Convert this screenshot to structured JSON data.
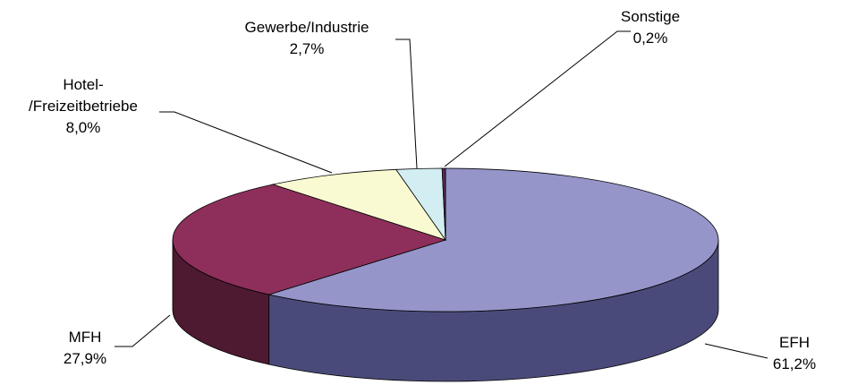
{
  "chart_data": {
    "type": "pie",
    "variant": "3d",
    "title": "",
    "slices": [
      {
        "label": "EFH",
        "value": 61.2,
        "value_text": "61,2%",
        "color": "#9595c9",
        "side_color": "#4a4a7a"
      },
      {
        "label": "MFH",
        "value": 27.9,
        "value_text": "27,9%",
        "color": "#8e2f5b",
        "side_color": "#4e1a31"
      },
      {
        "label": "Hotel-\n/Freizeitbetriebe",
        "value": 8.0,
        "value_text": "8,0%",
        "color": "#fafad2",
        "side_color": "#9a9a78"
      },
      {
        "label": "Gewerbe/Industrie",
        "value": 2.7,
        "value_text": "2,7%",
        "color": "#d3eef2",
        "side_color": "#7a9599"
      },
      {
        "label": "Sonstige",
        "value": 0.2,
        "value_text": "0,2%",
        "color": "#5a2a5a",
        "side_color": "#2e132e"
      }
    ]
  }
}
